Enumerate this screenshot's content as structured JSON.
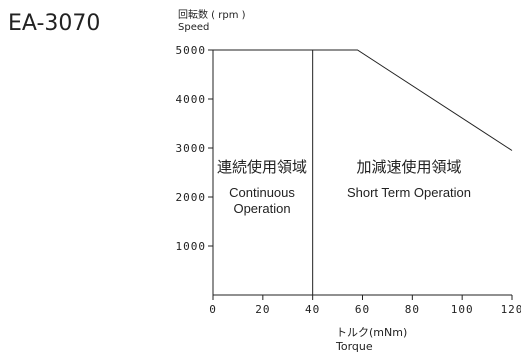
{
  "model": "EA-3070",
  "chart_data": {
    "type": "line",
    "ylabel_jp": "回転数 ( rpm )",
    "ylabel_en": "Speed",
    "xlabel_jp": "トルク(mNm)",
    "xlabel_en": "Torque",
    "xlim": [
      0,
      120
    ],
    "ylim": [
      0,
      5000
    ],
    "x_ticks": [
      "0",
      "20",
      "40",
      "60",
      "80",
      "100",
      "120"
    ],
    "y_ticks": [
      "1000",
      "2000",
      "3000",
      "4000",
      "5000"
    ],
    "series": [
      {
        "x": [
          0,
          58,
          120
        ],
        "y": [
          5000,
          5000,
          2950
        ]
      }
    ],
    "divider_x": 40,
    "regions": [
      {
        "jp": "連続使用領域",
        "en": [
          "Continuous",
          "Operation"
        ]
      },
      {
        "jp": "加減速使用領域",
        "en": [
          "Short Term Operation"
        ]
      }
    ]
  }
}
